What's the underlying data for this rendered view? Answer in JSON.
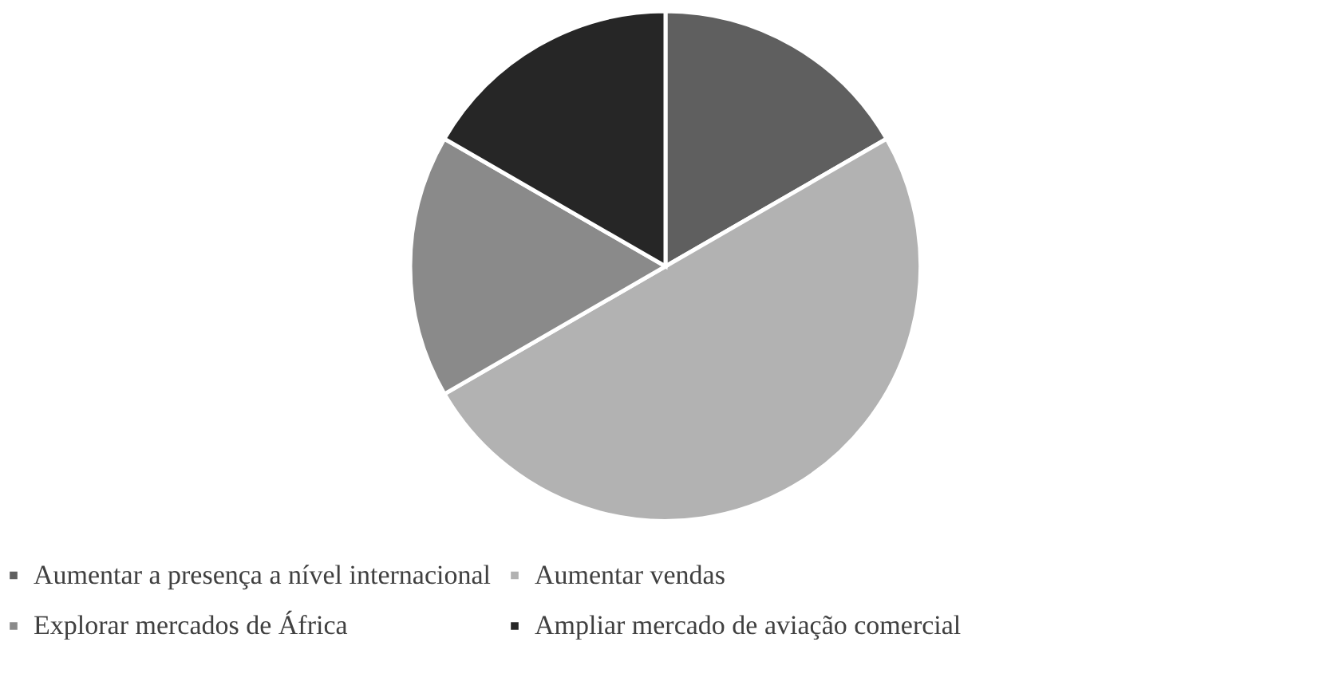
{
  "chart_data": {
    "type": "pie",
    "categories": [
      "Aumentar a presença a nível internacional",
      "Aumentar vendas",
      "Explorar mercados de África",
      "Ampliar mercado de aviação comercial"
    ],
    "values": [
      16.67,
      50,
      16.67,
      16.67
    ],
    "colors": [
      "#5f5f5f",
      "#b2b2b2",
      "#8a8a8a",
      "#262626"
    ],
    "legend": "bottom"
  }
}
